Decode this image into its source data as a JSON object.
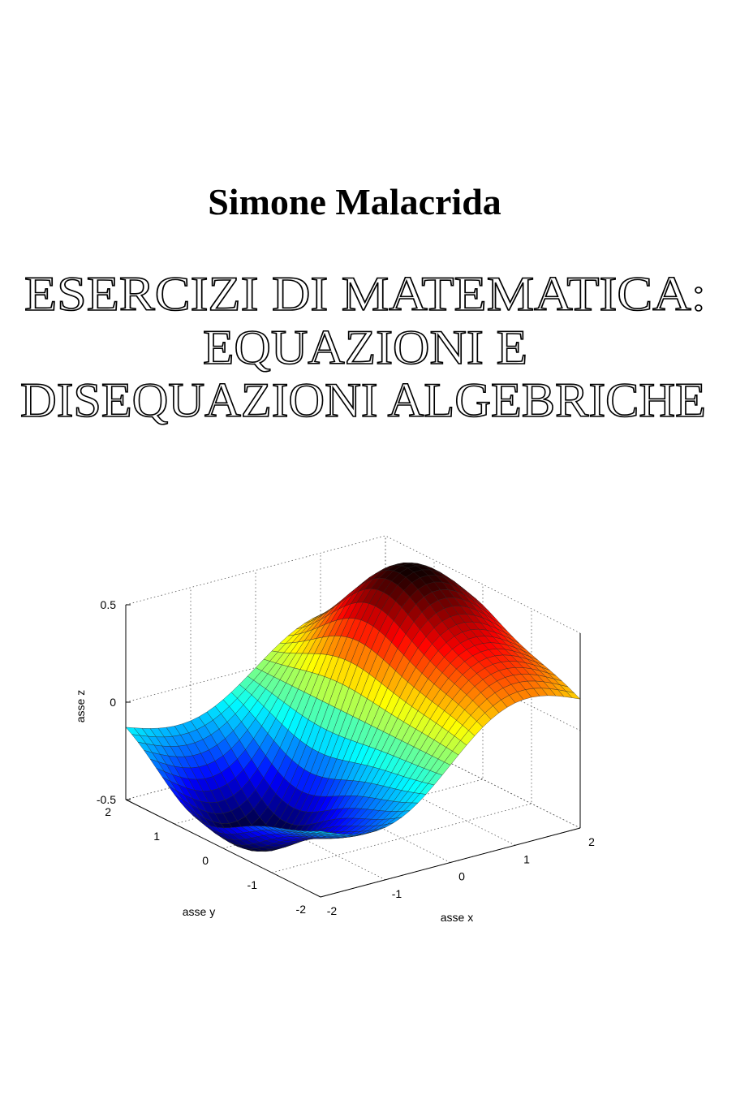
{
  "author": "Simone Malacrida",
  "title": [
    "ESERCIZI DI MATEMATICA:",
    "EQUAZIONI E",
    "DISEQUAZIONI ALGEBRICHE"
  ],
  "figure": {
    "x_label": "asse x",
    "y_label": "asse y",
    "z_label": "asse z",
    "x_ticks": [
      -2,
      -1,
      0,
      1,
      2
    ],
    "y_ticks": [
      -2,
      -1,
      0,
      1,
      2
    ],
    "z_ticks": [
      -0.5,
      0,
      0.5
    ]
  }
}
